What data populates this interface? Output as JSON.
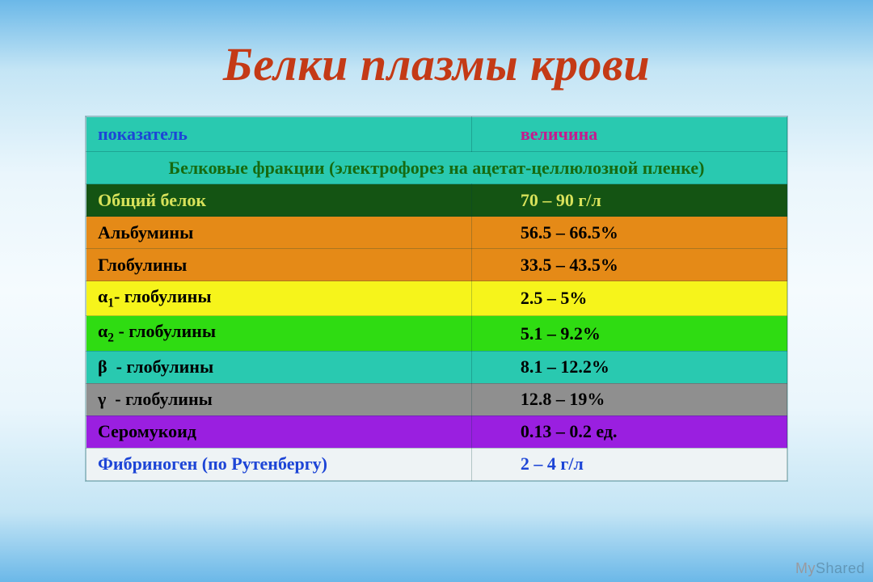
{
  "title": {
    "text": "Белки плазмы крови",
    "color": "#c43a16",
    "fontsize": 58
  },
  "background": {
    "gradient_top": "#6bb8e8",
    "gradient_mid": "#f5fbfe",
    "gradient_bottom": "#6bb8e8"
  },
  "table": {
    "header": {
      "bg": "#29c9b0",
      "col1": {
        "text": "показатель",
        "color": "#1d45d6"
      },
      "col2": {
        "text": "величина",
        "color": "#c61a8e"
      }
    },
    "subheader": {
      "bg": "#29c9b0",
      "text": "Белковые фракции (электрофорез на ацетат-целлюлозной пленке)",
      "color": "#166a10"
    },
    "rows": [
      {
        "label_html": "Общий белок",
        "value": "70 – 90 г/л",
        "bg": "#145413",
        "text_color": "#d7e25a"
      },
      {
        "label_html": "Альбумины",
        "value": "56.5 – 66.5%",
        "bg": "#e58a17",
        "text_color": "#000000"
      },
      {
        "label_html": "Глобулины",
        "value": "33.5 – 43.5%",
        "bg": "#e58a17",
        "text_color": "#000000"
      },
      {
        "label_html": "<span class='greek'>α</span><span class='sub'>1</span>- глобулины",
        "value": "2.5 – 5%",
        "bg": "#f6f41b",
        "text_color": "#000000"
      },
      {
        "label_html": "<span class='greek'>α</span><span class='sub'>2</span> - глобулины",
        "value": "5.1 – 9.2%",
        "bg": "#2fdc12",
        "text_color": "#000000"
      },
      {
        "label_html": "<span class='greek'>β</span>&nbsp;&nbsp;- глобулины",
        "value": "8.1 – 12.2%",
        "bg": "#29c9b0",
        "text_color": "#000000"
      },
      {
        "label_html": "<span class='greek'>γ</span>&nbsp;&nbsp;- глобулины",
        "value": "12.8 – 19%",
        "bg": "#8f8f8f",
        "text_color": "#000000"
      },
      {
        "label_html": "Серомукоид",
        "value": "0.13 – 0.2 ед.",
        "bg": "#9a1fe0",
        "text_color": "#000000"
      },
      {
        "label_html": "Фибриноген (по Рутенбергу)",
        "value": "2 – 4 г/л",
        "bg": "#eef3f5",
        "text_color": "#1d45d6"
      }
    ]
  },
  "watermark": {
    "prefix": "My",
    "suffix": "Shared"
  }
}
